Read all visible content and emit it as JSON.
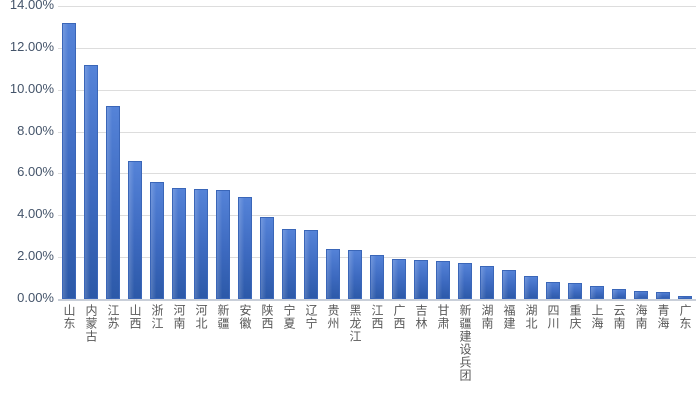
{
  "chart_data": {
    "type": "bar",
    "title": "",
    "xlabel": "",
    "ylabel": "",
    "unit": "%",
    "legend": "none",
    "grid": true,
    "ylim": [
      0,
      14
    ],
    "y_ticks": [
      0,
      2,
      4,
      6,
      8,
      10,
      12,
      14
    ],
    "y_tick_labels": [
      "0.00%",
      "2.00%",
      "4.00%",
      "6.00%",
      "8.00%",
      "10.00%",
      "12.00%",
      "14.00%"
    ],
    "categories": [
      "山东",
      "内蒙古",
      "江苏",
      "山西",
      "浙江",
      "河南",
      "河北",
      "新疆",
      "安徽",
      "陕西",
      "宁夏",
      "辽宁",
      "贵州",
      "黑龙江",
      "江西",
      "广西",
      "吉林",
      "甘肃",
      "新疆建设兵团",
      "湖南",
      "福建",
      "湖北",
      "四川",
      "重庆",
      "上海",
      "云南",
      "海南",
      "青海",
      "广东"
    ],
    "values": [
      13.2,
      11.2,
      9.2,
      6.6,
      5.6,
      5.3,
      5.25,
      5.2,
      4.85,
      3.9,
      3.35,
      3.3,
      2.4,
      2.35,
      2.1,
      1.9,
      1.85,
      1.8,
      1.7,
      1.6,
      1.4,
      1.1,
      0.8,
      0.75,
      0.6,
      0.5,
      0.4,
      0.35,
      0.15
    ]
  },
  "colors": {
    "bar_gradient_top": "#5583d8",
    "bar_gradient_mid": "#3d6ac0",
    "bar_gradient_bottom": "#2c59a8",
    "bar_edge": "#3a66b8",
    "gridline": "#dddddd",
    "baseline": "#c9cfd9",
    "y_tick_text": "#44546a",
    "x_tick_text": "#595959",
    "background": "#ffffff"
  }
}
